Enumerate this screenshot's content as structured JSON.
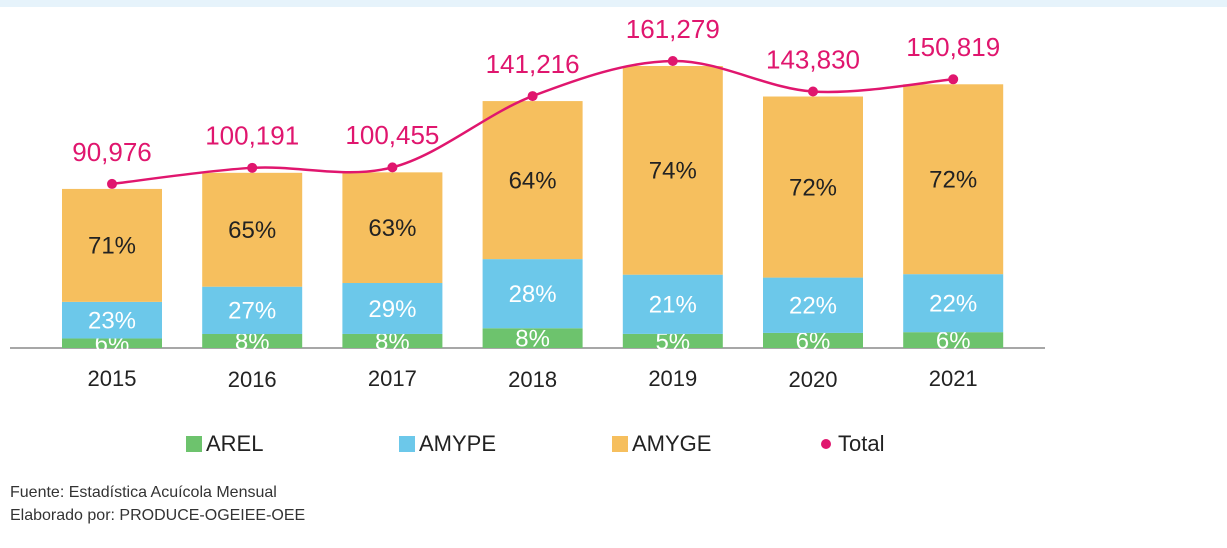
{
  "chart_data": {
    "type": "bar",
    "stacked": true,
    "categories": [
      "2015",
      "2016",
      "2017",
      "2018",
      "2019",
      "2020",
      "2021"
    ],
    "series": [
      {
        "name": "AREL",
        "color": "#6dc36d",
        "values": [
          6,
          8,
          8,
          8,
          5,
          6,
          6
        ],
        "value_labels": [
          "6%",
          "8%",
          "8%",
          "8%",
          "5%",
          "6%",
          "6%"
        ]
      },
      {
        "name": "AMYPE",
        "color": "#6cc8ea",
        "values": [
          23,
          27,
          29,
          28,
          21,
          22,
          22
        ],
        "value_labels": [
          "23%",
          "27%",
          "29%",
          "28%",
          "21%",
          "22%",
          "22%"
        ]
      },
      {
        "name": "AMYGE",
        "color": "#f6bf5e",
        "values": [
          71,
          65,
          63,
          64,
          74,
          72,
          72
        ],
        "value_labels": [
          "71%",
          "65%",
          "63%",
          "64%",
          "74%",
          "72%",
          "72%"
        ]
      },
      {
        "name": "Total",
        "type": "line",
        "color": "#e0166e",
        "values": [
          90976,
          100191,
          100455,
          141216,
          161279,
          143830,
          150819
        ],
        "value_labels": [
          "90,976",
          "100,191",
          "100,455",
          "141,216",
          "161,279",
          "143,830",
          "150,819"
        ]
      }
    ],
    "legend": "bottom",
    "source": [
      "Fuente: Estadística Acuícola Mensual",
      "Elaborado por: PRODUCE-OGEIEE-OEE"
    ]
  }
}
